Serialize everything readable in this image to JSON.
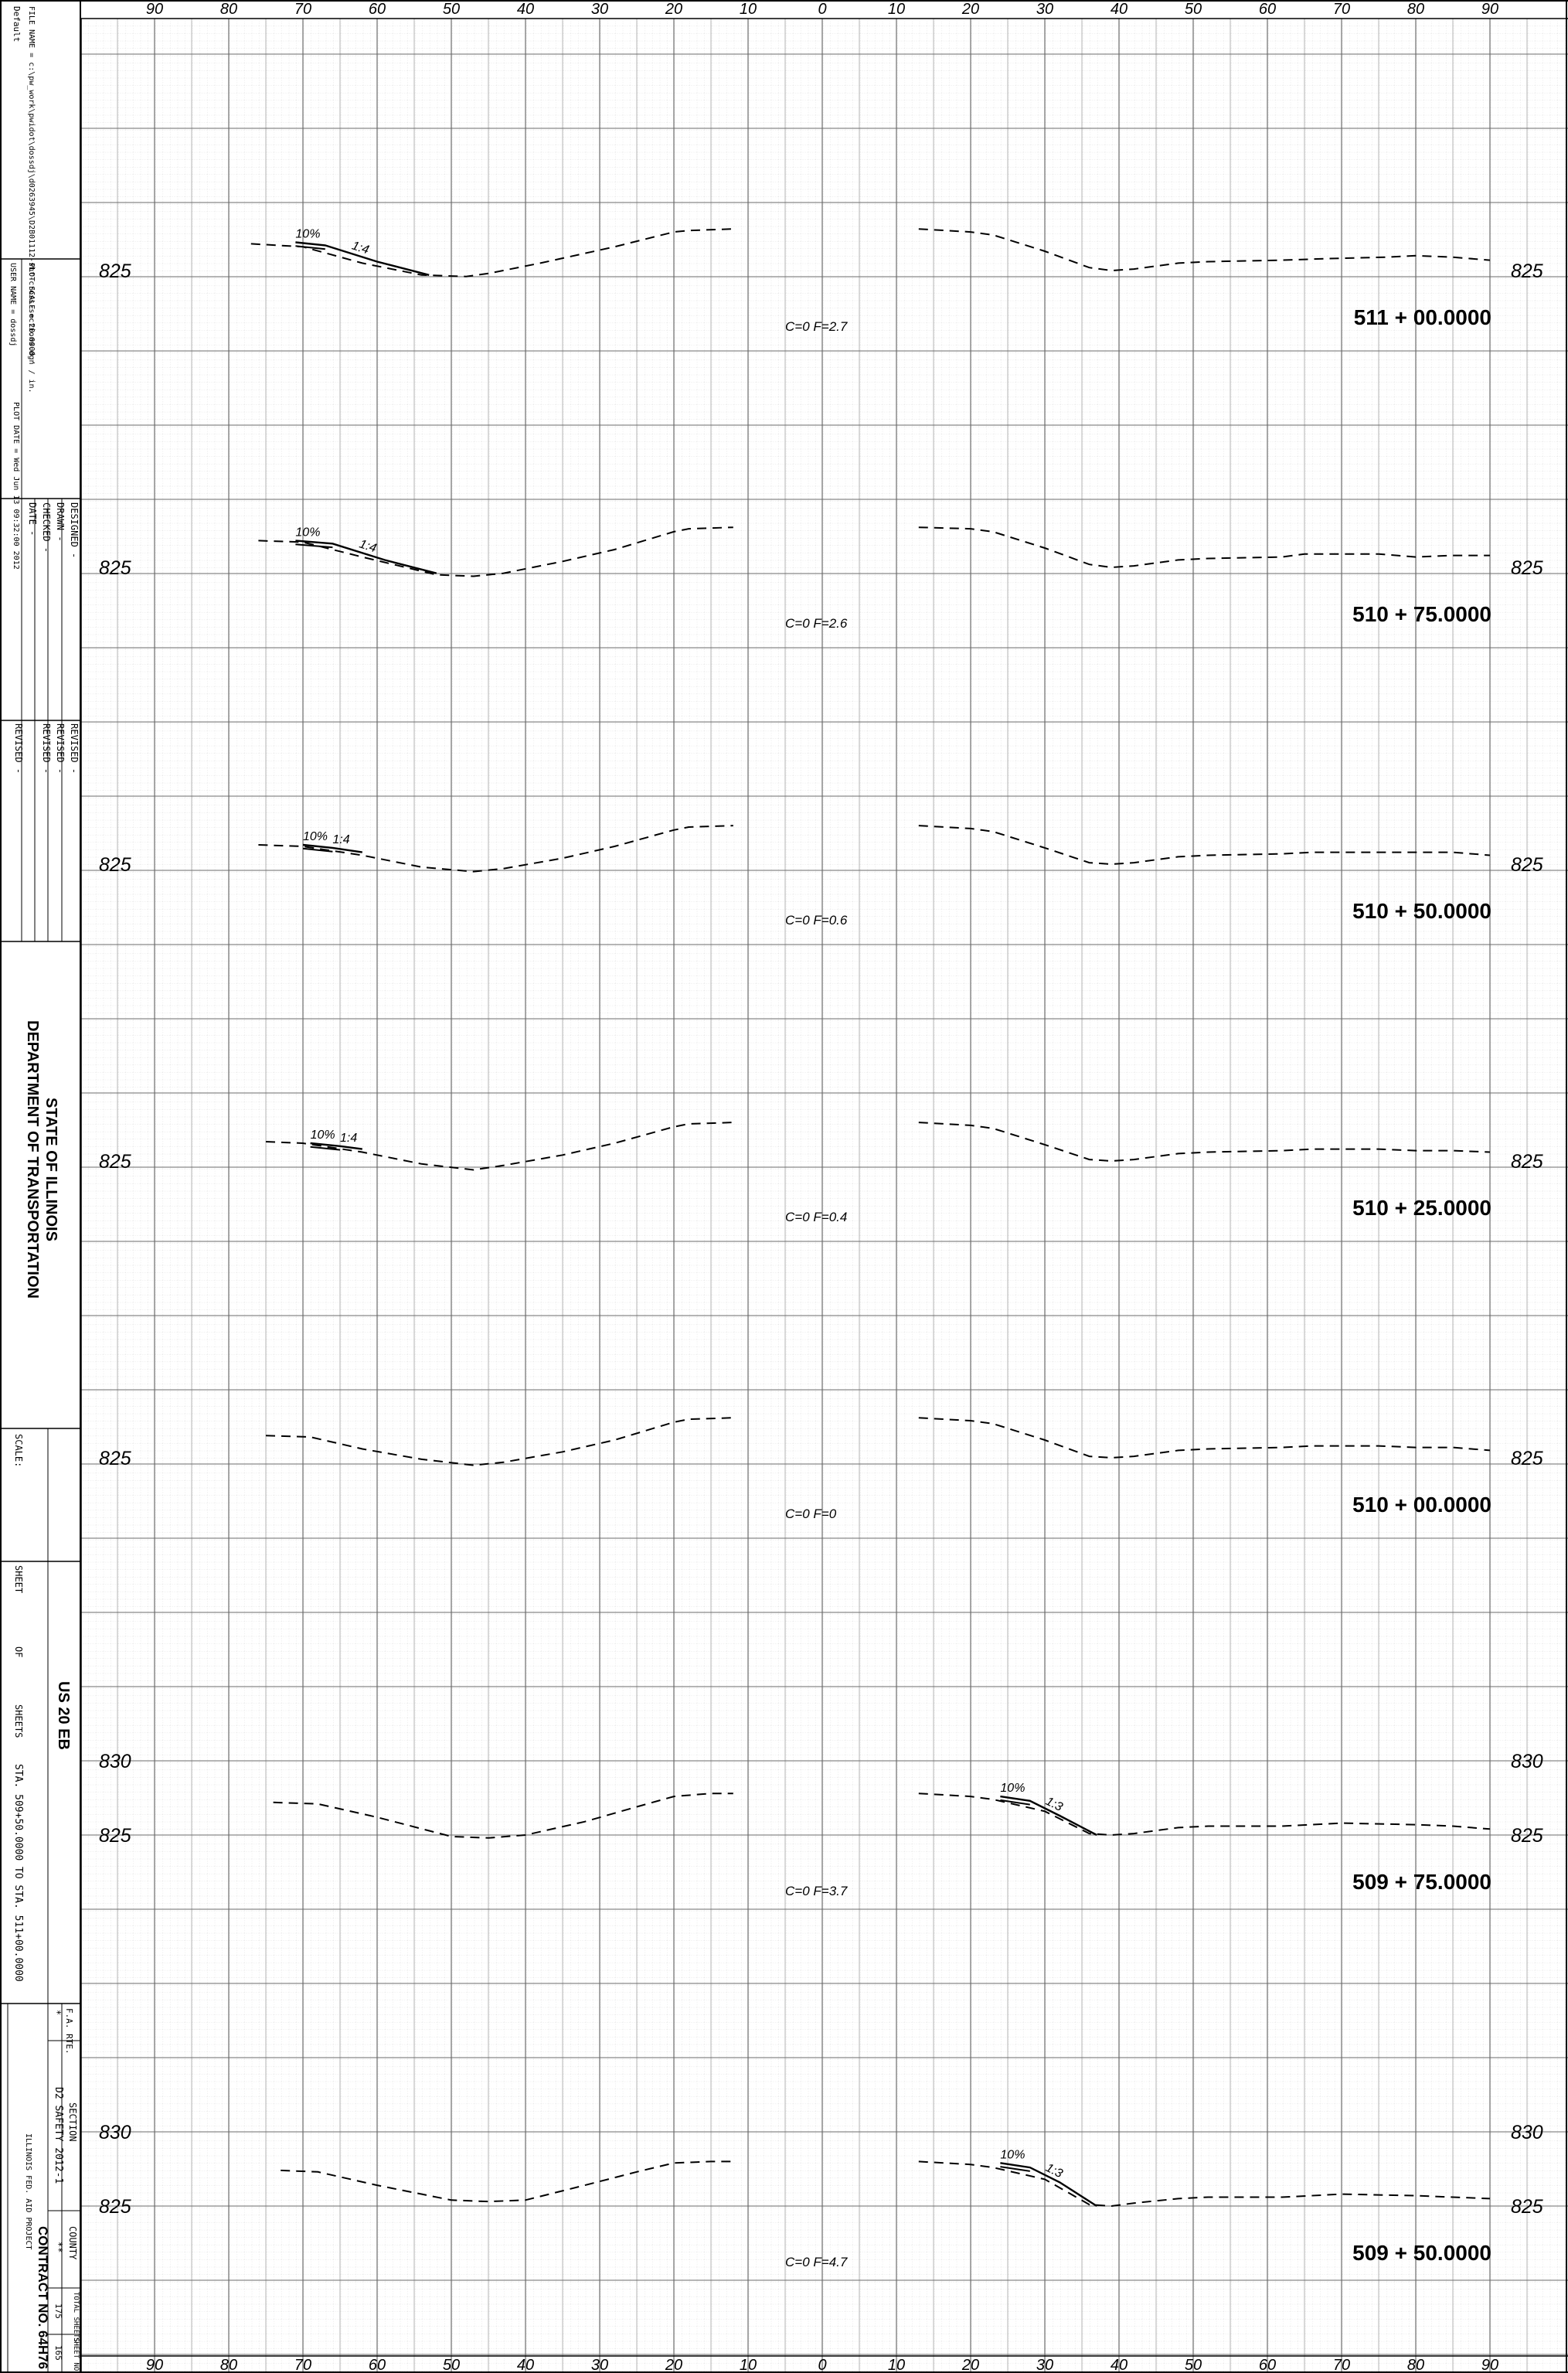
{
  "title_block": {
    "default_label": "Default",
    "file_name": "FILE NAME  =   c:\\pw_work\\pwidot\\dossdj\\d0263945\\D2B01112-sht-cross-sections.dgn",
    "user_name": "USER NAME  =  dossdj",
    "plot_scale": "PLOT SCALE  =  20.0000 ' / in.",
    "plot_date": "PLOT DATE  =  Wed Jun 13 09:32:00 2012",
    "designed": "DESIGNED  -",
    "drawn": "DRAWN  -",
    "checked": "CHECKED  -",
    "date": "DATE  -",
    "revised": "REVISED  -",
    "dash": "-",
    "agency_line1": "STATE OF ILLINOIS",
    "agency_line2": "DEPARTMENT OF TRANSPORTATION",
    "scale_label": "SCALE:",
    "sheet_label": "SHEET",
    "of_label": "OF",
    "sheets_label": "SHEETS",
    "route_title": "US 20 EB",
    "station_range": "STA. 509+50.0000 TO STA. 511+00.0000",
    "fa_rte_label": "F.A. RTE.",
    "fa_rte_value": "*",
    "section_label": "SECTION",
    "section_value": "D2 SAFETY 2012-1",
    "county_label": "COUNTY",
    "county_value": "**",
    "total_sheets_label": "TOTAL SHEETS",
    "total_sheets_value": "175",
    "sheet_no_label": "SHEET NO.",
    "sheet_no_value": "165",
    "contract": "CONTRACT NO. 64H76",
    "project": "ILLINOIS FED. AID PROJECT"
  },
  "offset_axis": {
    "labels": [
      "90",
      "80",
      "70",
      "60",
      "50",
      "40",
      "30",
      "20",
      "10",
      "0",
      "10",
      "20",
      "30",
      "40",
      "50",
      "60",
      "70",
      "80",
      "90"
    ],
    "values": [
      -90,
      -80,
      -70,
      -60,
      -50,
      -40,
      -30,
      -20,
      -10,
      0,
      10,
      20,
      30,
      40,
      50,
      60,
      70,
      80,
      90
    ]
  },
  "sections": [
    {
      "station": "511+00.0000",
      "cut_fill": "C=0    F=2.7",
      "elevation_labels": [
        {
          "text": "825",
          "elev": 825
        }
      ],
      "left_ground": [
        [
          -77,
          826.8
        ],
        [
          -70,
          826.6
        ],
        [
          -62,
          825.5
        ],
        [
          -54,
          824.7
        ],
        [
          -48,
          824.6
        ],
        [
          -45,
          824.8
        ],
        [
          -38,
          825.5
        ],
        [
          -28,
          826.6
        ],
        [
          -20,
          827.6
        ],
        [
          -18,
          827.7
        ],
        [
          -12,
          827.8
        ]
      ],
      "right_ground": [
        [
          13,
          827.8
        ],
        [
          20,
          827.6
        ],
        [
          23,
          827.4
        ],
        [
          30,
          826.3
        ],
        [
          36,
          825.2
        ],
        [
          39,
          825.0
        ],
        [
          42,
          825.1
        ],
        [
          48,
          825.5
        ],
        [
          52,
          825.6
        ],
        [
          62,
          825.7
        ],
        [
          68,
          825.8
        ],
        [
          76,
          825.9
        ],
        [
          80,
          826.0
        ],
        [
          85,
          825.9
        ],
        [
          90,
          825.7
        ]
      ],
      "fill_slope": {
        "side": "left",
        "points": [
          [
            -71,
            826.9
          ],
          [
            -67,
            826.7
          ],
          [
            -60,
            825.6
          ],
          [
            -53,
            824.7
          ]
        ],
        "label_pct": "10%",
        "label_ratio": "1:4"
      }
    },
    {
      "station": "510+75.0000",
      "cut_fill": "C=0    F=2.6",
      "elevation_labels": [
        {
          "text": "825",
          "elev": 825
        }
      ],
      "left_ground": [
        [
          -76,
          826.8
        ],
        [
          -70,
          826.7
        ],
        [
          -62,
          825.7
        ],
        [
          -52,
          824.5
        ],
        [
          -47,
          824.4
        ],
        [
          -43,
          824.6
        ],
        [
          -35,
          825.4
        ],
        [
          -28,
          826.2
        ],
        [
          -20,
          827.4
        ],
        [
          -18,
          827.6
        ],
        [
          -12,
          827.7
        ]
      ],
      "right_ground": [
        [
          13,
          827.7
        ],
        [
          20,
          827.6
        ],
        [
          23,
          827.4
        ],
        [
          30,
          826.3
        ],
        [
          36,
          825.2
        ],
        [
          39,
          825.0
        ],
        [
          42,
          825.1
        ],
        [
          48,
          825.5
        ],
        [
          52,
          825.6
        ],
        [
          62,
          825.7
        ],
        [
          65,
          825.9
        ],
        [
          75,
          825.9
        ],
        [
          80,
          825.7
        ],
        [
          85,
          825.8
        ],
        [
          90,
          825.8
        ]
      ],
      "fill_slope": {
        "side": "left",
        "points": [
          [
            -71,
            826.8
          ],
          [
            -66,
            826.6
          ],
          [
            -59,
            825.5
          ],
          [
            -52,
            824.6
          ]
        ],
        "label_pct": "10%",
        "label_ratio": "1:4"
      }
    },
    {
      "station": "510+50.0000",
      "cut_fill": "C=0    F=0.6",
      "elevation_labels": [
        {
          "text": "825",
          "elev": 825
        }
      ],
      "left_ground": [
        [
          -76,
          826.3
        ],
        [
          -70,
          826.2
        ],
        [
          -62,
          825.6
        ],
        [
          -54,
          824.8
        ],
        [
          -47,
          824.5
        ],
        [
          -43,
          824.7
        ],
        [
          -35,
          825.4
        ],
        [
          -28,
          826.2
        ],
        [
          -20,
          827.3
        ],
        [
          -18,
          827.5
        ],
        [
          -12,
          827.6
        ]
      ],
      "right_ground": [
        [
          13,
          827.6
        ],
        [
          20,
          827.4
        ],
        [
          23,
          827.2
        ],
        [
          30,
          826.1
        ],
        [
          36,
          825.1
        ],
        [
          39,
          825.0
        ],
        [
          42,
          825.1
        ],
        [
          48,
          825.5
        ],
        [
          52,
          825.6
        ],
        [
          62,
          825.7
        ],
        [
          66,
          825.8
        ],
        [
          75,
          825.8
        ],
        [
          80,
          825.8
        ],
        [
          85,
          825.8
        ],
        [
          90,
          825.6
        ]
      ],
      "fill_slope": {
        "side": "left",
        "points": [
          [
            -70,
            826.3
          ],
          [
            -66,
            826.1
          ],
          [
            -62,
            825.8
          ]
        ],
        "label_pct": "10%",
        "label_ratio": "1:4"
      }
    },
    {
      "station": "510+25.0000",
      "cut_fill": "C=0    F=0.4",
      "elevation_labels": [
        {
          "text": "825",
          "elev": 825
        }
      ],
      "left_ground": [
        [
          -75,
          826.3
        ],
        [
          -70,
          826.2
        ],
        [
          -62,
          825.6
        ],
        [
          -54,
          824.8
        ],
        [
          -47,
          824.4
        ],
        [
          -43,
          824.7
        ],
        [
          -35,
          825.4
        ],
        [
          -28,
          826.2
        ],
        [
          -20,
          827.3
        ],
        [
          -18,
          827.5
        ],
        [
          -12,
          827.6
        ]
      ],
      "right_ground": [
        [
          13,
          827.6
        ],
        [
          20,
          827.4
        ],
        [
          23,
          827.2
        ],
        [
          30,
          826.1
        ],
        [
          36,
          825.1
        ],
        [
          39,
          825.0
        ],
        [
          42,
          825.1
        ],
        [
          48,
          825.5
        ],
        [
          52,
          825.6
        ],
        [
          62,
          825.7
        ],
        [
          66,
          825.8
        ],
        [
          75,
          825.8
        ],
        [
          80,
          825.7
        ],
        [
          85,
          825.7
        ],
        [
          90,
          825.6
        ]
      ],
      "fill_slope": {
        "side": "left",
        "points": [
          [
            -69,
            826.2
          ],
          [
            -65,
            826.0
          ],
          [
            -62,
            825.8
          ]
        ],
        "label_pct": "10%",
        "label_ratio": "1:4"
      }
    },
    {
      "station": "510+00.0000",
      "cut_fill": "C=0    F=0",
      "elevation_labels": [
        {
          "text": "825",
          "elev": 825
        }
      ],
      "left_ground": [
        [
          -75,
          826.5
        ],
        [
          -69,
          826.4
        ],
        [
          -62,
          825.6
        ],
        [
          -54,
          824.9
        ],
        [
          -47,
          824.5
        ],
        [
          -43,
          824.7
        ],
        [
          -35,
          825.4
        ],
        [
          -28,
          826.2
        ],
        [
          -20,
          827.4
        ],
        [
          -18,
          827.6
        ],
        [
          -12,
          827.7
        ]
      ],
      "right_ground": [
        [
          13,
          827.7
        ],
        [
          20,
          827.5
        ],
        [
          23,
          827.3
        ],
        [
          30,
          826.2
        ],
        [
          36,
          825.1
        ],
        [
          39,
          825.0
        ],
        [
          42,
          825.1
        ],
        [
          48,
          825.5
        ],
        [
          52,
          825.6
        ],
        [
          62,
          825.7
        ],
        [
          66,
          825.8
        ],
        [
          75,
          825.8
        ],
        [
          80,
          825.7
        ],
        [
          85,
          825.7
        ],
        [
          90,
          825.5
        ]
      ],
      "fill_slope": null
    },
    {
      "station": "509+75.0000",
      "cut_fill": "C=0    F=3.7",
      "elevation_labels": [
        {
          "text": "830",
          "elev": 830
        },
        {
          "text": "825",
          "elev": 825
        }
      ],
      "left_ground": [
        [
          -74,
          827.2
        ],
        [
          -68,
          827.1
        ],
        [
          -60,
          826.2
        ],
        [
          -50,
          824.9
        ],
        [
          -45,
          824.8
        ],
        [
          -40,
          825.0
        ],
        [
          -32,
          825.9
        ],
        [
          -25,
          826.9
        ],
        [
          -20,
          827.6
        ],
        [
          -15,
          827.8
        ],
        [
          -12,
          827.8
        ]
      ],
      "right_ground": [
        [
          13,
          827.8
        ],
        [
          20,
          827.6
        ],
        [
          23,
          827.4
        ],
        [
          30,
          826.6
        ],
        [
          36,
          825.1
        ],
        [
          39,
          825.0
        ],
        [
          42,
          825.1
        ],
        [
          48,
          825.5
        ],
        [
          52,
          825.6
        ],
        [
          62,
          825.6
        ],
        [
          70,
          825.8
        ],
        [
          80,
          825.7
        ],
        [
          85,
          825.6
        ],
        [
          90,
          825.4
        ]
      ],
      "fill_slope": {
        "side": "right",
        "points": [
          [
            24,
            827.6
          ],
          [
            28,
            827.3
          ],
          [
            32,
            826.3
          ],
          [
            37,
            825.0
          ]
        ],
        "label_pct": "10%",
        "label_ratio": "1:3"
      }
    },
    {
      "station": "509+50.0000",
      "cut_fill": "C=0    F=4.7",
      "elevation_labels": [
        {
          "text": "830",
          "elev": 830
        },
        {
          "text": "825",
          "elev": 825
        }
      ],
      "left_ground": [
        [
          -73,
          827.4
        ],
        [
          -68,
          827.3
        ],
        [
          -60,
          826.4
        ],
        [
          -50,
          825.4
        ],
        [
          -45,
          825.3
        ],
        [
          -40,
          825.4
        ],
        [
          -32,
          826.4
        ],
        [
          -25,
          827.3
        ],
        [
          -20,
          827.9
        ],
        [
          -15,
          828.0
        ],
        [
          -12,
          828.0
        ]
      ],
      "right_ground": [
        [
          13,
          828.0
        ],
        [
          20,
          827.8
        ],
        [
          23,
          827.6
        ],
        [
          30,
          826.8
        ],
        [
          36,
          825.1
        ],
        [
          39,
          825.0
        ],
        [
          42,
          825.2
        ],
        [
          48,
          825.5
        ],
        [
          52,
          825.6
        ],
        [
          62,
          825.6
        ],
        [
          70,
          825.8
        ],
        [
          80,
          825.7
        ],
        [
          85,
          825.6
        ],
        [
          90,
          825.5
        ]
      ],
      "fill_slope": {
        "side": "right",
        "points": [
          [
            24,
            827.9
          ],
          [
            28,
            827.6
          ],
          [
            32,
            826.6
          ],
          [
            37,
            825.0
          ]
        ],
        "label_pct": "10%",
        "label_ratio": "1:3"
      }
    }
  ]
}
